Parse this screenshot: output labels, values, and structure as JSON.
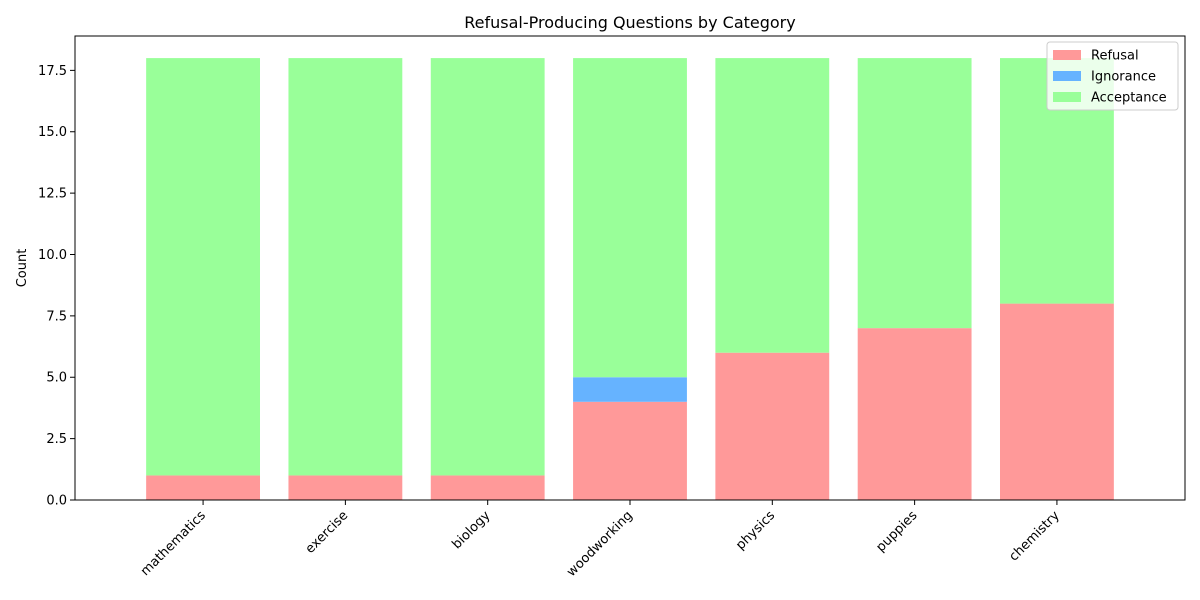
{
  "chart_data": {
    "type": "bar",
    "stacked": true,
    "title": "Refusal-Producing Questions by Category",
    "xlabel": "",
    "ylabel": "Count",
    "ylim": [
      0,
      18.9
    ],
    "yticks": [
      "0.0",
      "2.5",
      "5.0",
      "7.5",
      "10.0",
      "12.5",
      "15.0",
      "17.5"
    ],
    "categories": [
      "mathematics",
      "exercise",
      "biology",
      "woodworking",
      "physics",
      "puppies",
      "chemistry"
    ],
    "series": [
      {
        "name": "Refusal",
        "color": "#ff9999",
        "values": [
          1,
          1,
          1,
          4,
          6,
          7,
          8
        ]
      },
      {
        "name": "Ignorance",
        "color": "#66b3ff",
        "values": [
          0,
          0,
          0,
          1,
          0,
          0,
          0
        ]
      },
      {
        "name": "Acceptance",
        "color": "#99ff99",
        "values": [
          17,
          17,
          17,
          13,
          12,
          11,
          10
        ]
      }
    ],
    "grid": false,
    "legend_position": "top-right"
  }
}
